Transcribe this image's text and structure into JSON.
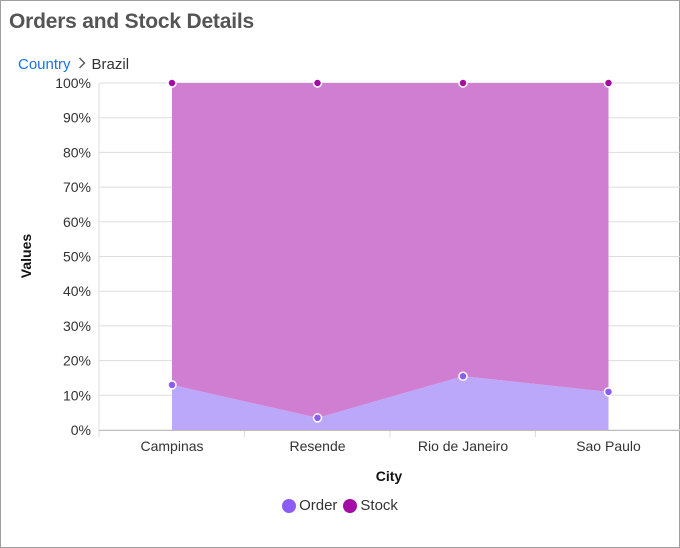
{
  "header": {
    "title": "Orders and Stock Details"
  },
  "breadcrumb": {
    "root": "Country",
    "separator_icon": "chevron-right-icon",
    "current": "Brazil"
  },
  "colors": {
    "order": "#8b5cf6",
    "order_fill": "#bba8fb",
    "stock": "#a30aa6",
    "stock_fill": "#d07ed1",
    "grid": "#dddddd",
    "link": "#1a73e8"
  },
  "chart_data": {
    "type": "area",
    "stacking": "100%",
    "categories": [
      "Campinas",
      "Resende",
      "Rio de Janeiro",
      "Sao Paulo"
    ],
    "series": [
      {
        "name": "Order",
        "values": [
          13,
          3.5,
          15.5,
          11
        ]
      },
      {
        "name": "Stock",
        "values": [
          87,
          96.5,
          84.5,
          89
        ]
      }
    ],
    "xlabel": "City",
    "ylabel": "Values",
    "ylim": [
      0,
      100
    ],
    "yticks": [
      "0%",
      "10%",
      "20%",
      "30%",
      "40%",
      "50%",
      "60%",
      "70%",
      "80%",
      "90%",
      "100%"
    ],
    "grid": true,
    "legend": "bottom-center"
  }
}
